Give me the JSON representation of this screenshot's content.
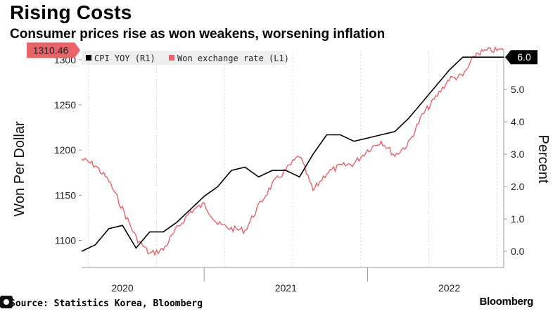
{
  "title": "Rising Costs",
  "subtitle": "Consumer prices rise as won weakens, worsening inflation",
  "source": "Source: Statistics Korea, Bloomberg",
  "brand": "Bloomberg",
  "colors": {
    "cpi": "#000000",
    "won": "#e8636a",
    "grid": "#d9d9d9",
    "legend_bg": "#eeeeee"
  },
  "chart_data": {
    "type": "line",
    "title": "Rising Costs",
    "subtitle": "Consumer prices rise as won weakens, worsening inflation",
    "x_ticks": [
      "2020",
      "2021",
      "2022"
    ],
    "x_range": [
      "2019-10",
      "2022-06"
    ],
    "left_axis": {
      "label": "Won Per Dollar",
      "ticks": [
        "1100",
        "1150",
        "1200",
        "1250",
        "1300"
      ],
      "ylim": [
        1070,
        1310
      ]
    },
    "right_axis": {
      "label": "Percent",
      "ticks": [
        "0.0",
        "1.0",
        "2.0",
        "3.0",
        "4.0",
        "5.0",
        "6.0"
      ],
      "ylim": [
        -0.5,
        6.2
      ]
    },
    "legend": [
      "CPI YOY (R1)",
      "Won exchange rate (L1)"
    ],
    "last_value_left": "1310.46",
    "last_value_right": "6.0",
    "series": [
      {
        "name": "CPI YOY (R1)",
        "axis": "right",
        "x": [
          0,
          1,
          2,
          3,
          4,
          5,
          6,
          7,
          8,
          9,
          10,
          11,
          12,
          13,
          14,
          15,
          16,
          17,
          18,
          19,
          20,
          21,
          22,
          23,
          24,
          25,
          26,
          27,
          28,
          29,
          30,
          31
        ],
        "values": [
          0.0,
          0.2,
          0.7,
          0.8,
          0.1,
          0.6,
          0.6,
          0.9,
          1.3,
          1.7,
          2.0,
          2.5,
          2.6,
          2.3,
          2.5,
          2.5,
          2.3,
          3.0,
          3.6,
          3.6,
          3.4,
          3.5,
          3.6,
          3.7,
          4.1,
          4.6,
          5.1,
          5.6,
          6.0,
          6.0,
          6.0,
          6.0
        ]
      },
      {
        "name": "Won exchange rate (L1)",
        "axis": "left",
        "x": [
          0,
          1,
          2,
          3,
          4,
          5,
          6,
          7,
          8,
          9,
          10,
          11,
          12,
          13,
          14,
          15,
          16,
          17,
          18,
          19,
          20,
          21,
          22,
          23,
          24,
          25,
          26,
          27,
          28,
          29,
          30,
          31
        ],
        "values": [
          1190,
          1183,
          1166,
          1135,
          1103,
          1085,
          1090,
          1113,
          1132,
          1140,
          1118,
          1113,
          1111,
          1138,
          1162,
          1178,
          1194,
          1155,
          1175,
          1182,
          1185,
          1200,
          1210,
          1194,
          1207,
          1238,
          1258,
          1279,
          1282,
          1307,
          1310.46,
          1310.46
        ]
      }
    ]
  }
}
